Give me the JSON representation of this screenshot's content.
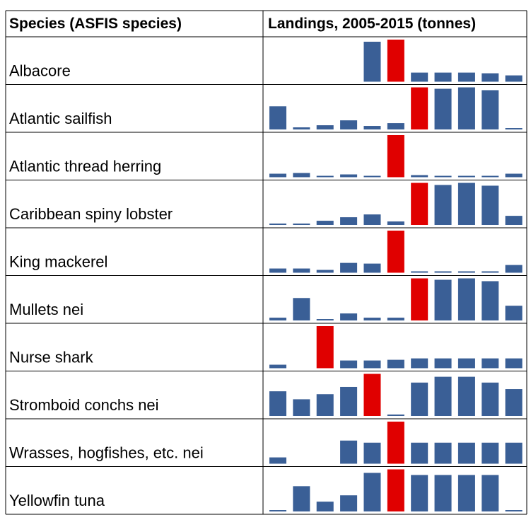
{
  "table": {
    "headers": [
      "Species (ASFIS species)",
      "Landings, 2005-2015 (tonnes)"
    ],
    "bar_color": "#3a5f96",
    "highlight_color": "#e00000",
    "rows": [
      {
        "name": "Albacore",
        "values": [
          null,
          null,
          null,
          null,
          57,
          60,
          13,
          13,
          13,
          12,
          9
        ]
      },
      {
        "name": "Atlantic sailfish",
        "values": [
          33,
          3,
          6,
          13,
          5,
          9,
          60,
          58,
          60,
          56,
          2
        ]
      },
      {
        "name": "Atlantic thread herring",
        "values": [
          5,
          6,
          2,
          4,
          2,
          60,
          3,
          2,
          2,
          2,
          5
        ]
      },
      {
        "name": "Caribbean spiny lobster",
        "values": [
          2,
          2,
          6,
          11,
          15,
          5,
          60,
          57,
          60,
          56,
          13
        ]
      },
      {
        "name": "King mackerel",
        "values": [
          6,
          6,
          4,
          14,
          13,
          60,
          2,
          2,
          2,
          2,
          11
        ]
      },
      {
        "name": "Mullets nei",
        "values": [
          4,
          32,
          2,
          10,
          4,
          4,
          60,
          58,
          60,
          56,
          21
        ]
      },
      {
        "name": "Nurse shark",
        "values": [
          5,
          null,
          60,
          11,
          11,
          12,
          14,
          14,
          14,
          14,
          14
        ]
      },
      {
        "name": "Stromboid conchs nei",
        "values": [
          34,
          23,
          30,
          40,
          58,
          2,
          46,
          54,
          54,
          46,
          37
        ]
      },
      {
        "name": "Wrasses, hogfishes, etc. nei",
        "values": [
          9,
          null,
          null,
          33,
          30,
          60,
          30,
          30,
          30,
          30,
          30
        ]
      },
      {
        "name": "Yellowfin tuna",
        "values": [
          2,
          36,
          14,
          23,
          55,
          60,
          52,
          52,
          52,
          52,
          2
        ]
      }
    ]
  }
}
